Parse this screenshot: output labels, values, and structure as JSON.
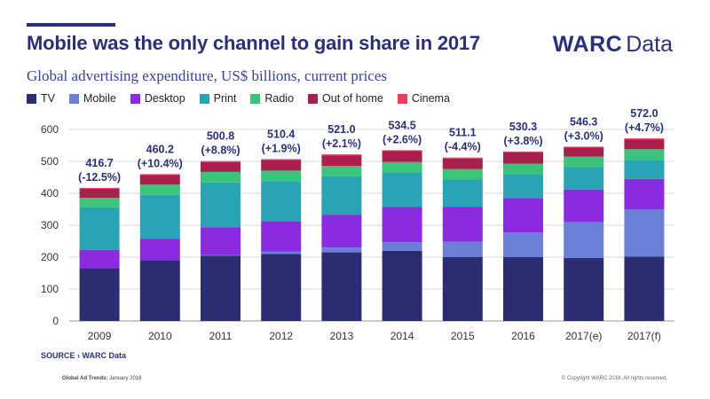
{
  "header": {
    "title": "Mobile was the only channel to gain share in 2017",
    "brand_main": "WARC",
    "brand_sub": "Data",
    "subtitle": "Global advertising expenditure, US$ billions, current prices"
  },
  "footer": {
    "source": "SOURCE › WARC Data",
    "left_label": "Global Ad Trends:",
    "left_date": "January 2018",
    "right": "© Copyright WARC 2018. All rights reserved."
  },
  "colors": {
    "TV": "#2b2d73",
    "Mobile": "#6b7fd7",
    "Desktop": "#8a2be2",
    "Print": "#2aa4b5",
    "Radio": "#3cc47a",
    "Out of home": "#a8204b",
    "Cinema": "#e8405f"
  },
  "chart_data": {
    "type": "bar",
    "stacked": true,
    "title": "Global advertising expenditure, US$ billions, current prices",
    "ylim": [
      0,
      600
    ],
    "yticks": [
      0,
      100,
      200,
      300,
      400,
      500,
      600
    ],
    "categories": [
      "2009",
      "2010",
      "2011",
      "2012",
      "2013",
      "2014",
      "2015",
      "2016",
      "2017(e)",
      "2017(f)"
    ],
    "series": [
      {
        "name": "TV",
        "values": [
          165,
          190,
          205,
          210,
          215,
          220,
          200,
          200,
          198,
          202
        ]
      },
      {
        "name": "Mobile",
        "values": [
          0,
          0,
          2,
          8,
          15,
          27,
          48,
          77,
          112,
          148
        ]
      },
      {
        "name": "Desktop",
        "values": [
          58,
          68,
          87,
          95,
          103,
          110,
          110,
          108,
          102,
          95
        ]
      },
      {
        "name": "Print",
        "values": [
          133,
          137,
          140,
          125,
          120,
          108,
          85,
          75,
          70,
          60
        ]
      },
      {
        "name": "Radio",
        "values": [
          30,
          32,
          33,
          33,
          33,
          33,
          33,
          33,
          33,
          33
        ]
      },
      {
        "name": "Out of home",
        "values": [
          28,
          30,
          31,
          33,
          33,
          34,
          33,
          35,
          28,
          30
        ]
      },
      {
        "name": "Cinema",
        "values": [
          3,
          3,
          3,
          3,
          3,
          3,
          3,
          3,
          3,
          4
        ]
      }
    ],
    "totals": [
      "416.7",
      "460.2",
      "500.8",
      "510.4",
      "521.0",
      "534.5",
      "511.1",
      "530.3",
      "546.3",
      "572.0"
    ],
    "growth": [
      "(-12.5%)",
      "(+10.4%)",
      "(+8.8%)",
      "(+1.9%)",
      "(+2.1%)",
      "(+2.6%)",
      "(-4.4%)",
      "(+3.8%)",
      "(+3.0%)",
      "(+4.7%)"
    ],
    "legend": [
      "TV",
      "Mobile",
      "Desktop",
      "Print",
      "Radio",
      "Out of home",
      "Cinema"
    ],
    "legend_position": "top-left"
  }
}
